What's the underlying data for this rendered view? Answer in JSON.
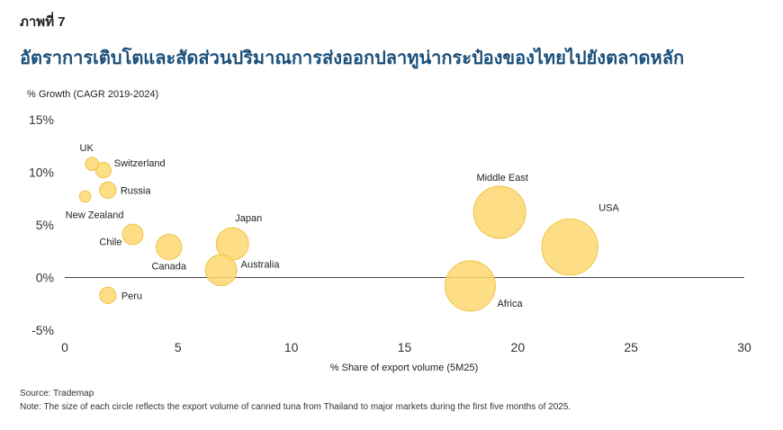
{
  "figure_label": "ภาพที่ 7",
  "title": "อัตราการเติบโตและสัดส่วนปริมาณการส่งออกปลาทูน่ากระป๋องของไทยไปยังตลาดหลัก",
  "source": "Source: Trademap",
  "note": "Note: The size of each circle reflects the export volume of canned tuna from Thailand to major markets during the first five months of 2025.",
  "chart_data": {
    "type": "scatter",
    "subtype": "bubble",
    "xlabel": "% Share of export volume (5M25)",
    "ylabel": "% Growth (CAGR 2019-2024)",
    "xlim": [
      0,
      30
    ],
    "ylim": [
      -5,
      15
    ],
    "x_ticks": [
      0,
      5,
      10,
      15,
      20,
      25,
      30
    ],
    "y_ticks": [
      15,
      10,
      5,
      0,
      -5
    ],
    "y_tick_labels": [
      "15%",
      "10%",
      "5%",
      "0%",
      "-5%"
    ],
    "grid": false,
    "zero_line": true,
    "bubble_color": "#fdd771",
    "bubble_edge_color": "#f3c244",
    "points": [
      {
        "label": "UK",
        "x": 1.2,
        "y": 10.8,
        "size": 1.2
      },
      {
        "label": "Switzerland",
        "x": 1.7,
        "y": 10.2,
        "size": 1.7
      },
      {
        "label": "Russia",
        "x": 1.9,
        "y": 8.3,
        "size": 1.9
      },
      {
        "label": "New Zealand",
        "x": 0.9,
        "y": 7.7,
        "size": 0.9
      },
      {
        "label": "Chile",
        "x": 3.0,
        "y": 4.1,
        "size": 3.0
      },
      {
        "label": "Canada",
        "x": 4.6,
        "y": 2.9,
        "size": 4.6
      },
      {
        "label": "Japan",
        "x": 7.4,
        "y": 3.2,
        "size": 7.4
      },
      {
        "label": "Australia",
        "x": 6.9,
        "y": 0.7,
        "size": 6.9
      },
      {
        "label": "Peru",
        "x": 1.9,
        "y": -1.7,
        "size": 1.9
      },
      {
        "label": "Middle East",
        "x": 19.2,
        "y": 6.2,
        "size": 19.2
      },
      {
        "label": "USA",
        "x": 22.3,
        "y": 2.9,
        "size": 22.3
      },
      {
        "label": "Africa",
        "x": 17.9,
        "y": -0.8,
        "size": 17.9
      }
    ]
  }
}
